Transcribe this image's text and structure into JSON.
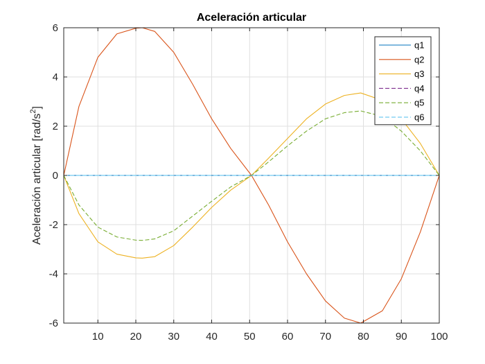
{
  "chart_data": {
    "type": "line",
    "title": "Aceleración articular",
    "xlabel": "",
    "ylabel": "Aceleración articular [rad/s",
    "ylabel_sup": "2",
    "ylabel_suffix": "]",
    "xlim": [
      1,
      100
    ],
    "ylim": [
      -6,
      6
    ],
    "xticks": [
      10,
      20,
      30,
      40,
      50,
      60,
      70,
      80,
      90,
      100
    ],
    "yticks": [
      -6,
      -4,
      -2,
      0,
      2,
      4,
      6
    ],
    "grid": true,
    "legend_position": "top-right",
    "x": [
      1,
      5,
      10,
      15,
      20,
      21.7,
      25,
      30,
      35,
      40,
      45,
      50.5,
      55,
      60,
      65,
      70,
      75,
      79.3,
      85,
      90,
      95,
      100
    ],
    "series": [
      {
        "name": "q1",
        "color": "#0072BD",
        "dash": "solid",
        "values": [
          0,
          0,
          0,
          0,
          0,
          0,
          0,
          0,
          0,
          0,
          0,
          0,
          0,
          0,
          0,
          0,
          0,
          0,
          0,
          0,
          0,
          0
        ]
      },
      {
        "name": "q2",
        "color": "#D95319",
        "dash": "solid",
        "values": [
          0,
          2.8,
          4.8,
          5.75,
          5.98,
          6.0,
          5.85,
          5.0,
          3.7,
          2.3,
          1.1,
          0,
          -1.2,
          -2.7,
          -4.0,
          -5.1,
          -5.8,
          -6.0,
          -5.5,
          -4.2,
          -2.3,
          0
        ]
      },
      {
        "name": "q3",
        "color": "#EDB120",
        "dash": "solid",
        "values": [
          0,
          -1.55,
          -2.7,
          -3.2,
          -3.35,
          -3.36,
          -3.3,
          -2.85,
          -2.1,
          -1.3,
          -0.6,
          0,
          0.7,
          1.5,
          2.3,
          2.9,
          3.25,
          3.35,
          3.05,
          2.3,
          1.3,
          0
        ]
      },
      {
        "name": "q4",
        "color": "#7E2F8E",
        "dash": "dashed",
        "values": [
          0,
          0,
          0,
          0,
          0,
          0,
          0,
          0,
          0,
          0,
          0,
          0,
          0,
          0,
          0,
          0,
          0,
          0,
          0,
          0,
          0,
          0
        ]
      },
      {
        "name": "q5",
        "color": "#77AC30",
        "dash": "dashed",
        "values": [
          0,
          -1.2,
          -2.1,
          -2.5,
          -2.63,
          -2.64,
          -2.58,
          -2.25,
          -1.65,
          -1.05,
          -0.47,
          0,
          0.55,
          1.2,
          1.8,
          2.3,
          2.55,
          2.62,
          2.4,
          1.8,
          1.0,
          0
        ]
      },
      {
        "name": "q6",
        "color": "#4DBEEE",
        "dash": "dashed",
        "values": [
          0,
          0,
          0,
          0,
          0,
          0,
          0,
          0,
          0,
          0,
          0,
          0,
          0,
          0,
          0,
          0,
          0,
          0,
          0,
          0,
          0,
          0
        ]
      }
    ]
  }
}
